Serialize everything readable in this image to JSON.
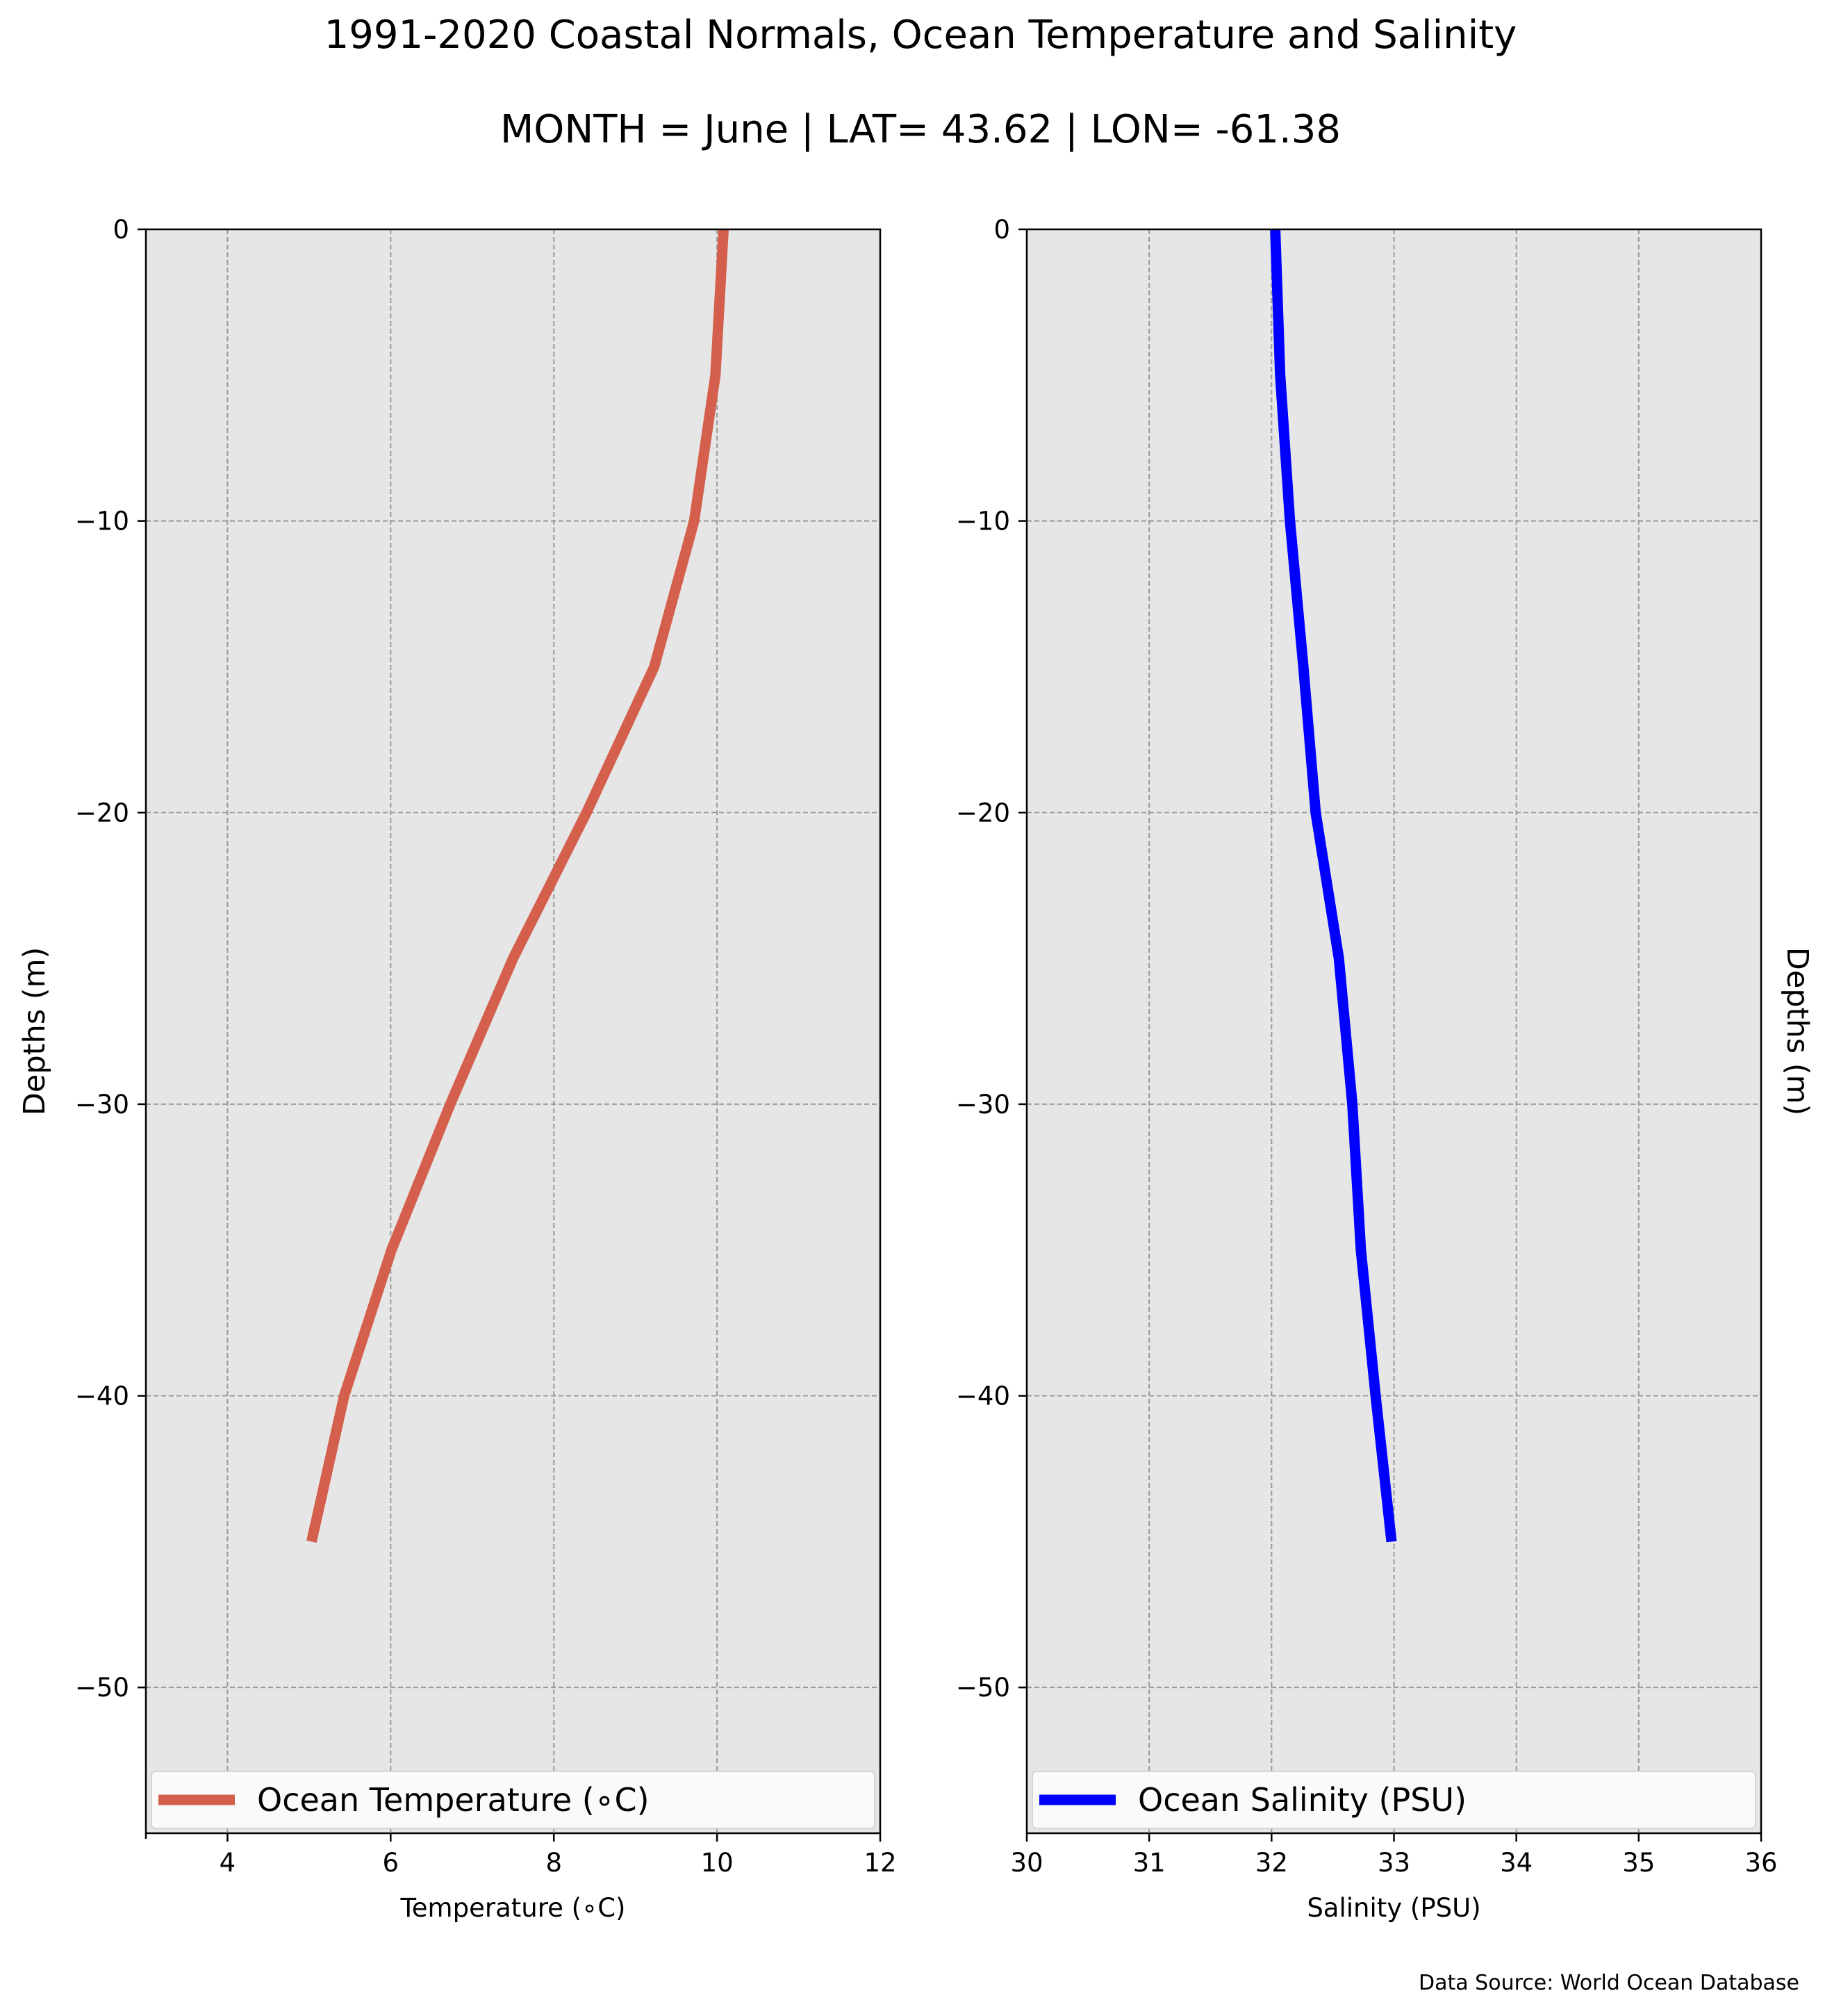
{
  "title": "1991-2020 Coastal Normals, Ocean Temperature and Salinity",
  "subtitle": "MONTH = June | LAT= 43.62 | LON= -61.38",
  "source": "Data Source: World Ocean Database",
  "colors": {
    "plot_bg": "#e6e6e6",
    "grid": "#999999",
    "temperature": "#d45f4c",
    "salinity": "#0000ff"
  },
  "chart_data": [
    {
      "type": "line",
      "xlabel": "Temperature ($^\\circ$C)",
      "xlabel_display": "Temperature (∘C)",
      "ylabel": "Depths (m)",
      "xlim": [
        3,
        12
      ],
      "ylim": [
        -55,
        0
      ],
      "xticks": [
        4,
        6,
        8,
        10,
        12
      ],
      "yticks": [
        0,
        -10,
        -20,
        -30,
        -40,
        -50
      ],
      "ytick_labels": [
        "0",
        "−10",
        "−20",
        "−30",
        "−40",
        "−50"
      ],
      "xtick_labels": [
        "4",
        "6",
        "8",
        "10",
        "12"
      ],
      "grid": true,
      "legend": "bottom",
      "series": [
        {
          "name": "Ocean Temperature (∘C)",
          "x": [
            10.08,
            9.98,
            9.72,
            9.23,
            8.4,
            7.5,
            6.73,
            6.01,
            5.43,
            5.03
          ],
          "y": [
            0,
            -5,
            -10,
            -15,
            -20,
            -25,
            -30,
            -35,
            -40,
            -45
          ]
        }
      ]
    },
    {
      "type": "line",
      "xlabel": "Salinity (PSU)",
      "ylabel": "Depths (m)",
      "xlim": [
        30,
        36
      ],
      "ylim": [
        -55,
        0
      ],
      "xticks": [
        30,
        31,
        32,
        33,
        34,
        35,
        36
      ],
      "yticks": [
        0,
        -10,
        -20,
        -30,
        -40,
        -50
      ],
      "ytick_labels": [
        "0",
        "−10",
        "−20",
        "−30",
        "−40",
        "−50"
      ],
      "xtick_labels": [
        "30",
        "31",
        "32",
        "33",
        "34",
        "35",
        "36"
      ],
      "grid": true,
      "legend": "bottom",
      "series": [
        {
          "name": "Ocean Salinity (PSU)",
          "x": [
            32.03,
            32.07,
            32.15,
            32.26,
            32.36,
            32.55,
            32.66,
            32.73,
            32.85,
            32.98
          ],
          "y": [
            0,
            -5,
            -10,
            -15,
            -20,
            -25,
            -30,
            -35,
            -40,
            -45
          ]
        }
      ]
    }
  ]
}
